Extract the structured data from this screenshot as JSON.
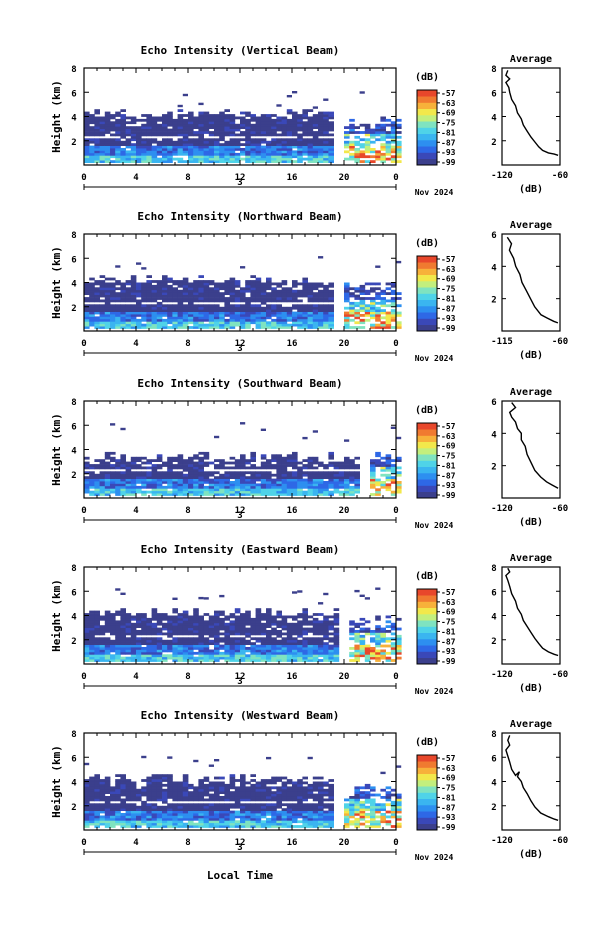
{
  "figure": {
    "xlabel": "Local Time",
    "day_label": "3",
    "month_label": "Nov 2024",
    "colorbar_unit": "(dB)",
    "colorbar_ticks": [
      "-57",
      "-63",
      "-69",
      "-75",
      "-81",
      "-87",
      "-93",
      "-99"
    ],
    "x_ticks": [
      "0",
      "4",
      "8",
      "12",
      "16",
      "20",
      "0"
    ],
    "y_ticks": [
      "2",
      "4",
      "6",
      "8"
    ],
    "ylabel": "Height (km)",
    "profile_title": "Average",
    "profile_xlabel": "(dB)"
  },
  "chart_data": [
    {
      "type": "heatmap",
      "title": "Echo Intensity (Vertical Beam)",
      "xlabel": "",
      "ylabel": "Height (km)",
      "xlim": [
        0,
        24
      ],
      "ylim": [
        0,
        8
      ],
      "color_range_db": [
        -99,
        -57
      ],
      "profile": {
        "title": "Average",
        "xlabel": "(dB)",
        "xticks": [
          "-120",
          "-60"
        ],
        "xlim": [
          -120,
          -60
        ],
        "ylim": [
          0,
          8
        ],
        "points": [
          [
            -62,
            0.8
          ],
          [
            -66,
            0.9
          ],
          [
            -72,
            1.0
          ],
          [
            -78,
            1.2
          ],
          [
            -82,
            1.5
          ],
          [
            -86,
            1.9
          ],
          [
            -90,
            2.3
          ],
          [
            -94,
            2.8
          ],
          [
            -98,
            3.3
          ],
          [
            -100,
            3.8
          ],
          [
            -104,
            4.3
          ],
          [
            -106,
            4.9
          ],
          [
            -110,
            5.4
          ],
          [
            -112,
            6.0
          ],
          [
            -113,
            6.4
          ],
          [
            -116,
            6.8
          ],
          [
            -112,
            7.1
          ],
          [
            -116,
            7.4
          ],
          [
            -114,
            7.8
          ]
        ]
      },
      "precip_hours": 3.5
    },
    {
      "type": "heatmap",
      "title": "Echo Intensity (Northward Beam)",
      "xlabel": "",
      "ylabel": "Height (km)",
      "xlim": [
        0,
        24
      ],
      "ylim": [
        0,
        8
      ],
      "color_range_db": [
        -99,
        -57
      ],
      "profile": {
        "title": "Average",
        "xlabel": "(dB)",
        "xticks": [
          "-115",
          "-60"
        ],
        "xlim": [
          -115,
          -60
        ],
        "ylim": [
          0,
          6
        ],
        "points": [
          [
            -62,
            0.5
          ],
          [
            -66,
            0.6
          ],
          [
            -72,
            0.8
          ],
          [
            -78,
            1.0
          ],
          [
            -84,
            1.5
          ],
          [
            -88,
            2.0
          ],
          [
            -92,
            2.5
          ],
          [
            -96,
            3.0
          ],
          [
            -98,
            3.5
          ],
          [
            -102,
            4.0
          ],
          [
            -104,
            4.5
          ],
          [
            -108,
            5.0
          ],
          [
            -106,
            5.4
          ],
          [
            -110,
            5.8
          ]
        ]
      },
      "precip_hours": 3.5
    },
    {
      "type": "heatmap",
      "title": "Echo Intensity (Southward Beam)",
      "xlabel": "",
      "ylabel": "Height (km)",
      "xlim": [
        0,
        24
      ],
      "ylim": [
        0,
        8
      ],
      "color_range_db": [
        -99,
        -57
      ],
      "profile": {
        "title": "Average",
        "xlabel": "(dB)",
        "xticks": [
          "-120",
          "-60"
        ],
        "xlim": [
          -120,
          -60
        ],
        "ylim": [
          0,
          6
        ],
        "points": [
          [
            -62,
            0.6
          ],
          [
            -68,
            0.8
          ],
          [
            -74,
            1.0
          ],
          [
            -80,
            1.3
          ],
          [
            -86,
            1.7
          ],
          [
            -90,
            2.2
          ],
          [
            -94,
            2.7
          ],
          [
            -96,
            3.2
          ],
          [
            -100,
            3.6
          ],
          [
            -100,
            4.0
          ],
          [
            -104,
            4.3
          ],
          [
            -106,
            4.7
          ],
          [
            -110,
            5.0
          ],
          [
            -112,
            5.3
          ],
          [
            -106,
            5.6
          ],
          [
            -110,
            5.9
          ]
        ]
      },
      "precip_hours": 1.5
    },
    {
      "type": "heatmap",
      "title": "Echo Intensity (Eastward Beam)",
      "xlabel": "",
      "ylabel": "Height (km)",
      "xlim": [
        0,
        24
      ],
      "ylim": [
        0,
        8
      ],
      "color_range_db": [
        -99,
        -57
      ],
      "profile": {
        "title": "Average",
        "xlabel": "(dB)",
        "xticks": [
          "-120",
          "-60"
        ],
        "xlim": [
          -120,
          -60
        ],
        "ylim": [
          0,
          8
        ],
        "points": [
          [
            -62,
            0.7
          ],
          [
            -66,
            0.8
          ],
          [
            -72,
            1.0
          ],
          [
            -78,
            1.3
          ],
          [
            -82,
            1.7
          ],
          [
            -86,
            2.1
          ],
          [
            -90,
            2.6
          ],
          [
            -94,
            3.1
          ],
          [
            -98,
            3.6
          ],
          [
            -100,
            4.1
          ],
          [
            -104,
            4.6
          ],
          [
            -106,
            5.2
          ],
          [
            -110,
            5.8
          ],
          [
            -112,
            6.4
          ],
          [
            -114,
            6.9
          ],
          [
            -116,
            7.3
          ],
          [
            -112,
            7.6
          ],
          [
            -114,
            7.9
          ]
        ]
      },
      "precip_hours": 3.0
    },
    {
      "type": "heatmap",
      "title": "Echo Intensity (Westward Beam)",
      "xlabel": "Local Time",
      "ylabel": "Height (km)",
      "xlim": [
        0,
        24
      ],
      "ylim": [
        0,
        8
      ],
      "color_range_db": [
        -99,
        -57
      ],
      "profile": {
        "title": "Average",
        "xlabel": "(dB)",
        "xticks": [
          "-120",
          "-60"
        ],
        "xlim": [
          -120,
          -60
        ],
        "ylim": [
          0,
          8
        ],
        "points": [
          [
            -62,
            0.8
          ],
          [
            -66,
            0.9
          ],
          [
            -72,
            1.1
          ],
          [
            -80,
            1.4
          ],
          [
            -86,
            1.9
          ],
          [
            -90,
            2.4
          ],
          [
            -94,
            3.0
          ],
          [
            -98,
            3.5
          ],
          [
            -100,
            4.0
          ],
          [
            -104,
            4.4
          ],
          [
            -102,
            4.8
          ],
          [
            -106,
            4.5
          ],
          [
            -110,
            5.0
          ],
          [
            -112,
            5.6
          ],
          [
            -114,
            6.1
          ],
          [
            -116,
            6.6
          ],
          [
            -112,
            7.0
          ],
          [
            -114,
            7.4
          ],
          [
            -112,
            7.8
          ]
        ]
      },
      "precip_hours": 3.5
    }
  ]
}
